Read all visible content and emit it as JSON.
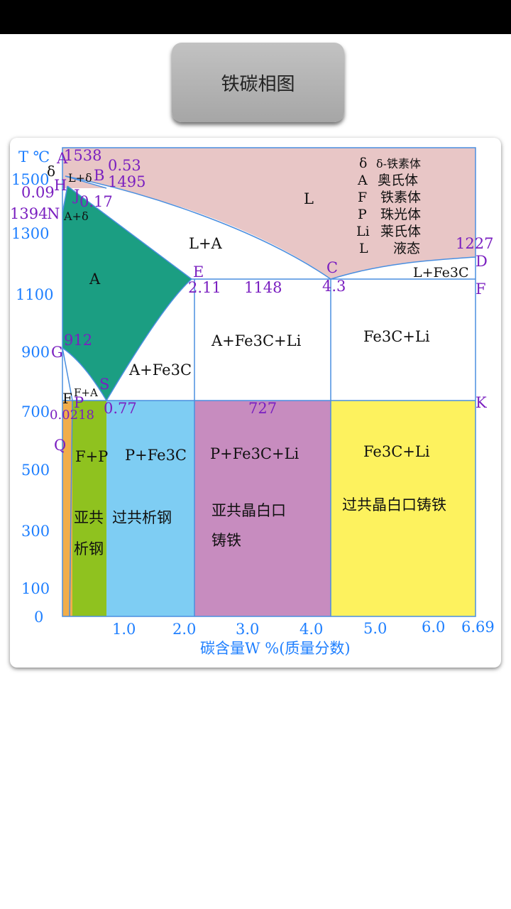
{
  "status_bar": {},
  "title_button": {
    "label": "铁碳相图"
  },
  "diagram": {
    "t_unit": "T ℃",
    "y_ticks": [
      "1500",
      "1300",
      "1100",
      "900",
      "700",
      "500",
      "300",
      "100",
      "0"
    ],
    "x_ticks": [
      "1.0",
      "2.0",
      "3.0",
      "4.0",
      "5.0",
      "6.0",
      "6.69"
    ],
    "x_axis_label": "碳含量W %(质量分数)",
    "points": {
      "A": "A",
      "B": "B",
      "H": "H",
      "J": "J",
      "N": "N",
      "E": "E",
      "C": "C",
      "D": "D",
      "F_right": "F",
      "G": "G",
      "S": "S",
      "P": "P",
      "Q": "Q",
      "K": "K",
      "F_left": "F",
      "delta": "δ"
    },
    "values": {
      "t1538": "1538",
      "c053": "0.53",
      "t1495": "1495",
      "c009": "0.09",
      "c017": "0.17",
      "t1394": "1394",
      "t1227": "1227",
      "c211": "2.11",
      "t1148": "1148",
      "c43": "4.3",
      "t912": "912",
      "c0218": "0.0218",
      "c077": "0.77",
      "t727": "727"
    },
    "regions": {
      "L": "L",
      "L_A": "L+A",
      "L_delta": "L+δ",
      "A_delta": "A+δ",
      "A": "A",
      "L_Fe3C": "L+Fe3C",
      "A_Fe3C_Li": "A+Fe3C+Li",
      "Fe3C_Li_high": "Fe3C+Li",
      "A_Fe3C": "A+Fe3C",
      "F_A": "F+A",
      "F_P": "F+P",
      "P_Fe3C": "P+Fe3C",
      "P_Fe3C_Li": "P+Fe3C+Li",
      "Fe3C_Li_low": "Fe3C+Li"
    },
    "zone_names": {
      "hypoeutectoid_1": "亚共",
      "hypoeutectoid_2": "析钢",
      "hypereutectoid": "过共析钢",
      "hypoeutectic_1": "亚共晶白口",
      "hypoeutectic_2": "铸铁",
      "hypereutectic": "过共晶白口铸铁"
    },
    "legend": [
      {
        "sym": "δ",
        "desc": "δ-铁素体"
      },
      {
        "sym": "A",
        "desc": "奥氏体"
      },
      {
        "sym": "F",
        "desc": "铁素体"
      },
      {
        "sym": "P",
        "desc": "珠光体"
      },
      {
        "sym": "Li",
        "desc": "莱氏体"
      },
      {
        "sym": "L",
        "desc": "液态"
      }
    ],
    "colors": {
      "liquid": "#e8c6c6",
      "austenite": "#1b9e82",
      "ferrite": "#f1ad4a",
      "f_p": "#8fc21f",
      "p_fe3c": "#7ecdf3",
      "p_fe3c_li": "#c78cbf",
      "fe3c_li": "#fdf25e",
      "axis_blue": "#1e7fff",
      "purple": "#7a1fc0"
    }
  }
}
